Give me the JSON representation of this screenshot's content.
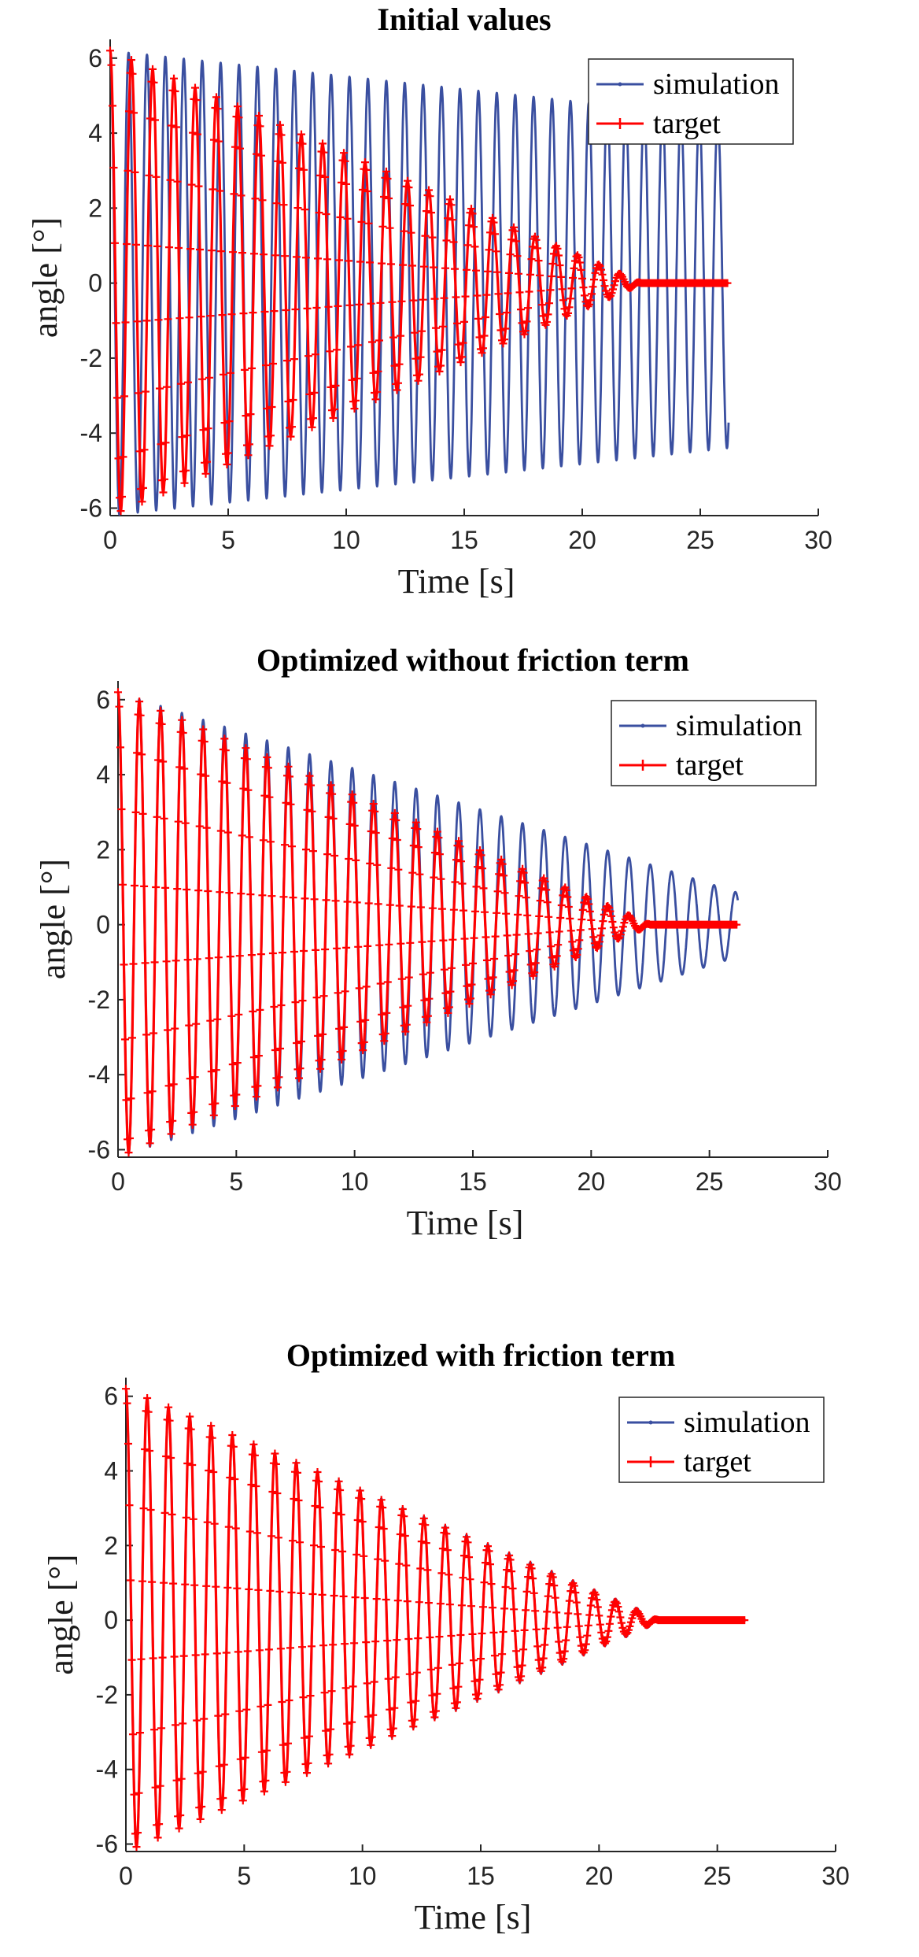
{
  "chart_data": [
    {
      "type": "line",
      "title": "Initial values",
      "xlabel": "Time [s]",
      "ylabel": "angle [°]",
      "xlim": [
        0,
        30
      ],
      "ylim": [
        -6.2,
        6.5
      ],
      "xticks": [
        0,
        5,
        10,
        15,
        20,
        25,
        30
      ],
      "yticks": [
        -6,
        -4,
        -2,
        0,
        2,
        4,
        6
      ],
      "grid": false,
      "legend_position": "top-right",
      "series": [
        {
          "name": "simulation",
          "color": "#3a4fa0",
          "marker": "dot",
          "model": "damped_sine",
          "amplitude_start": 6.2,
          "amplitude_end": 4.4,
          "period": 0.78,
          "t_start": 0,
          "t_end": 26.2
        },
        {
          "name": "target",
          "color": "#ff0000",
          "marker": "plus",
          "model": "damped_sine",
          "amplitude_start": 6.2,
          "amplitude_end": 0,
          "period": 0.9,
          "decay_to": 22.5,
          "t_start": 0,
          "t_end": 26.2
        }
      ]
    },
    {
      "type": "line",
      "title": "Optimized without friction term",
      "xlabel": "Time [s]",
      "ylabel": "angle [°]",
      "xlim": [
        0,
        30
      ],
      "ylim": [
        -6.2,
        6.5
      ],
      "xticks": [
        0,
        5,
        10,
        15,
        20,
        25,
        30
      ],
      "yticks": [
        -6,
        -4,
        -2,
        0,
        2,
        4,
        6
      ],
      "grid": false,
      "legend_position": "top-right",
      "series": [
        {
          "name": "simulation",
          "color": "#3a4fa0",
          "marker": "dot",
          "model": "damped_sine",
          "amplitude_start": 6.2,
          "amplitude_end": 0.85,
          "period": 0.9,
          "t_start": 0,
          "t_end": 26.2
        },
        {
          "name": "target",
          "color": "#ff0000",
          "marker": "plus",
          "model": "damped_sine",
          "amplitude_start": 6.2,
          "amplitude_end": 0,
          "period": 0.9,
          "decay_to": 22.5,
          "t_start": 0,
          "t_end": 26.2
        }
      ]
    },
    {
      "type": "line",
      "title": "Optimized with friction term",
      "xlabel": "Time [s]",
      "ylabel": "angle [°]",
      "xlim": [
        0,
        30
      ],
      "ylim": [
        -6.2,
        6.5
      ],
      "xticks": [
        0,
        5,
        10,
        15,
        20,
        25,
        30
      ],
      "yticks": [
        -6,
        -4,
        -2,
        0,
        2,
        4,
        6
      ],
      "grid": false,
      "legend_position": "top-right",
      "series": [
        {
          "name": "simulation",
          "color": "#3a4fa0",
          "marker": "dot",
          "model": "damped_sine",
          "amplitude_start": 6.2,
          "amplitude_end": 0,
          "period": 0.9,
          "decay_to": 22.8,
          "t_start": 0,
          "t_end": 26.2
        },
        {
          "name": "target",
          "color": "#ff0000",
          "marker": "plus",
          "model": "damped_sine",
          "amplitude_start": 6.2,
          "amplitude_end": 0,
          "period": 0.9,
          "decay_to": 22.5,
          "t_start": 0,
          "t_end": 26.2
        }
      ]
    }
  ]
}
